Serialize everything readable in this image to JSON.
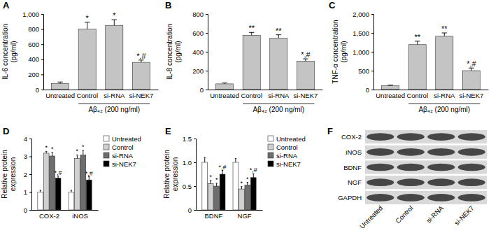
{
  "chart_data": [
    {
      "type": "bar",
      "title": "A",
      "y_label": [
        "IL-6 concentration",
        "(pg/ml)"
      ],
      "categories": [
        "Untreated",
        "Control",
        "si-RNA",
        "si-NEK7"
      ],
      "values": [
        80,
        800,
        850,
        360
      ],
      "errors": [
        20,
        90,
        75,
        30
      ],
      "annotations": [
        null,
        "*",
        "*",
        "*,#"
      ],
      "group_label": {
        "text": "Aβ₄₂ (200 ng/ml)",
        "categories": [
          "Control",
          "si-RNA",
          "si-NEK7"
        ]
      },
      "color": "#c4c4c4",
      "ylim": [
        0,
        1000
      ],
      "yticks": [
        0,
        200,
        400,
        600,
        800,
        {
          "value": 1000,
          "label": "1,000"
        }
      ]
    },
    {
      "type": "bar",
      "title": "B",
      "y_label": [
        "IL-8 concentration",
        "(pg/ml)"
      ],
      "categories": [
        "Untreated",
        "Control",
        "si-RNA",
        "si-NEK7"
      ],
      "values": [
        60,
        575,
        545,
        300
      ],
      "errors": [
        10,
        30,
        35,
        25
      ],
      "annotations": [
        null,
        "**",
        "**",
        "*,#"
      ],
      "group_label": {
        "text": "Aβ₄₂ (200 ng/ml)",
        "categories": [
          "Control",
          "si-RNA",
          "si-NEK7"
        ]
      },
      "color": "#c4c4c4",
      "ylim": [
        0,
        800
      ],
      "yticks": [
        0,
        200,
        400,
        600,
        800
      ]
    },
    {
      "type": "bar",
      "title": "C",
      "y_label": [
        "TNF-α concentration",
        "(pg/ml)"
      ],
      "categories": [
        "Untreated",
        "Control",
        "si-RNA",
        "si-NEK7"
      ],
      "values": [
        100,
        1190,
        1410,
        500
      ],
      "errors": [
        20,
        90,
        90,
        70
      ],
      "annotations": [
        null,
        "**",
        "**",
        "*,#"
      ],
      "group_label": {
        "text": "Aβ₄₂ (200 ng/ml)",
        "categories": [
          "Control",
          "si-RNA",
          "si-NEK7"
        ]
      },
      "color": "#c4c4c4",
      "ylim": [
        0,
        2000
      ],
      "yticks": [
        0,
        500,
        {
          "value": 1000,
          "label": "1,000"
        },
        {
          "value": 1500,
          "label": "1,500"
        },
        {
          "value": 2000,
          "label": "2,000"
        }
      ]
    },
    {
      "type": "bar",
      "title": "D",
      "y_label": [
        "Relative protein",
        "expression"
      ],
      "categories": [
        "COX-2",
        "iNOS"
      ],
      "series": [
        {
          "name": "Untreated",
          "color": "#ffffff",
          "values": [
            1.0,
            1.0
          ],
          "errors": [
            0.1,
            0.1
          ],
          "annotations": [
            null,
            null
          ]
        },
        {
          "name": "Control",
          "color": "#d0d0d0",
          "values": [
            3.18,
            2.88
          ],
          "errors": [
            0.1,
            0.2
          ],
          "annotations": [
            "*",
            "*"
          ]
        },
        {
          "name": "si-RNA",
          "color": "#6e6e6e",
          "values": [
            3.02,
            3.08
          ],
          "errors": [
            0.2,
            0.25
          ],
          "annotations": [
            "*",
            "*"
          ]
        },
        {
          "name": "si-NEK7",
          "color": "#000000",
          "values": [
            1.78,
            1.68
          ],
          "errors": [
            0.12,
            0.18
          ],
          "annotations": [
            "*,#",
            "*,#"
          ]
        }
      ],
      "legend": "upper right",
      "ylim": [
        0,
        4
      ],
      "yticks": [
        0,
        1,
        2,
        3,
        4
      ]
    },
    {
      "type": "bar",
      "title": "E",
      "y_label": [
        "Relative protein",
        "expression"
      ],
      "categories": [
        "BDNF",
        "NGF"
      ],
      "series": [
        {
          "name": "Untreated",
          "color": "#ffffff",
          "values": [
            1.0,
            1.0
          ],
          "errors": [
            0.1,
            0.08
          ],
          "annotations": [
            null,
            null
          ]
        },
        {
          "name": "Control",
          "color": "#d0d0d0",
          "values": [
            0.55,
            0.44
          ],
          "errors": [
            0.07,
            0.05
          ],
          "annotations": [
            "*",
            "*"
          ]
        },
        {
          "name": "si-RNA",
          "color": "#6e6e6e",
          "values": [
            0.5,
            0.52
          ],
          "errors": [
            0.06,
            0.06
          ],
          "annotations": [
            "*",
            "*"
          ]
        },
        {
          "name": "si-NEK7",
          "color": "#000000",
          "values": [
            0.75,
            0.68
          ],
          "errors": [
            0.08,
            0.08
          ],
          "annotations": [
            "*,#",
            "*,#"
          ]
        }
      ],
      "legend": "upper right",
      "ylim": [
        0,
        1.5
      ],
      "yticks": [
        0,
        0.5,
        {
          "value": 1.0,
          "label": "1.0"
        },
        1.5
      ]
    }
  ],
  "blot": {
    "title": "F",
    "proteins": [
      "COX-2",
      "iNOS",
      "BDNF",
      "NGF",
      "GAPDH"
    ],
    "lanes": [
      "Untreated",
      "Control",
      "si-RNA",
      "si-NEK7"
    ]
  }
}
